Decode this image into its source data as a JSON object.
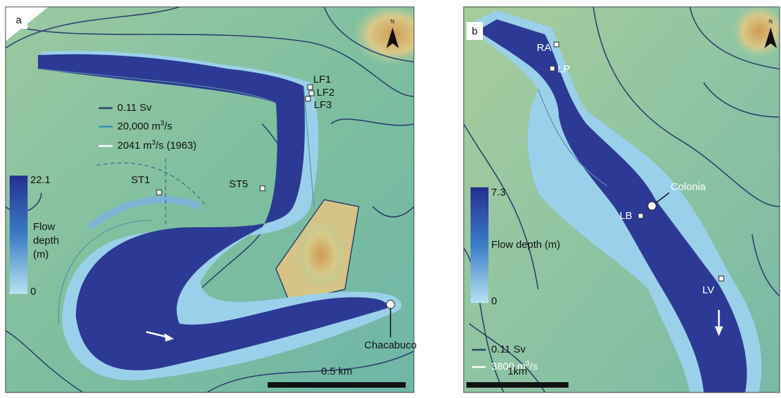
{
  "panel_a": {
    "label": "a",
    "north": "N",
    "sites": [
      "LF1",
      "LF2",
      "LF3",
      "ST1",
      "ST5",
      "Chacabuco"
    ],
    "legend": [
      {
        "text": "0.11 Sv"
      },
      {
        "before": "20,000 m",
        "sup": "3",
        "after": "/s"
      },
      {
        "before": "2041 m",
        "sup": "3",
        "after": "/s (1963)"
      }
    ],
    "colorbar": {
      "max": "22.1",
      "min": "0",
      "title": [
        "Flow",
        "depth",
        "(m)"
      ]
    },
    "scale": "0.5 km"
  },
  "panel_b": {
    "label": "b",
    "north": "N",
    "sites": [
      "RA",
      "LP",
      "Colonia",
      "LB",
      "LV"
    ],
    "legend": [
      {
        "text": "0.11 Sv"
      },
      {
        "before": "3800 m",
        "sup": "3",
        "after": "/s"
      }
    ],
    "colorbar": {
      "max": "7.3",
      "min": "0",
      "title": "Flow depth (m)"
    },
    "scale": "1km"
  }
}
